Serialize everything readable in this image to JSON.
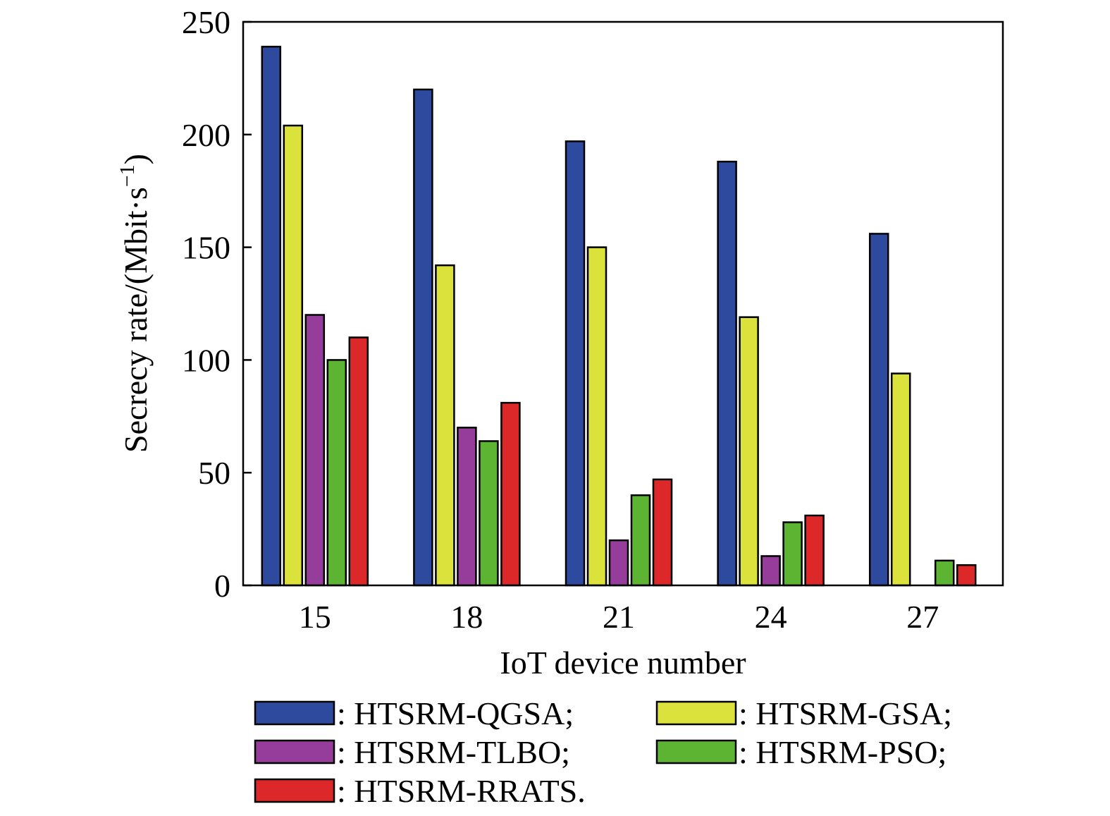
{
  "chart_data": {
    "type": "bar",
    "title": "",
    "xlabel": "IoT device number",
    "ylabel_main": "Secrecy rate/(Mbit·s",
    "ylabel_sup": "−1",
    "ylabel_end": ")",
    "ylim": [
      0,
      250
    ],
    "yticks": [
      "0",
      "50",
      "100",
      "150",
      "200",
      "250"
    ],
    "categories": [
      "15",
      "18",
      "21",
      "24",
      "27"
    ],
    "series": [
      {
        "name": "HTSRM-QGSA",
        "legend_label": ": HTSRM-QGSA;",
        "color": "#2e4a9e",
        "values": [
          239,
          220,
          197,
          188,
          156
        ]
      },
      {
        "name": "HTSRM-GSA",
        "legend_label": ": HTSRM-GSA;",
        "color": "#dce23c",
        "values": [
          204,
          142,
          150,
          119,
          94
        ]
      },
      {
        "name": "HTSRM-TLBO",
        "legend_label": ": HTSRM-TLBO;",
        "color": "#963c9a",
        "values": [
          120,
          70,
          20,
          13,
          0
        ]
      },
      {
        "name": "HTSRM-PSO",
        "legend_label": ": HTSRM-PSO;",
        "color": "#5cb432",
        "values": [
          100,
          64,
          40,
          28,
          11
        ]
      },
      {
        "name": "HTSRM-RRATS",
        "legend_label": ": HTSRM-RRATS.",
        "color": "#dc2828",
        "values": [
          110,
          81,
          47,
          31,
          9
        ]
      }
    ],
    "grid": false,
    "legend_position": "bottom"
  }
}
